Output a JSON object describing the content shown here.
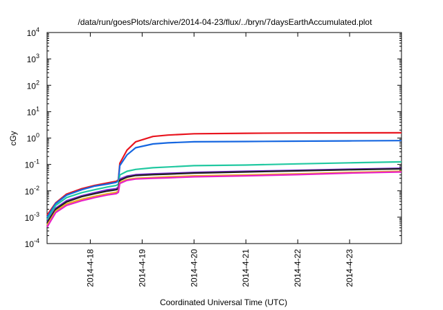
{
  "chart_data": {
    "type": "line",
    "title": "/data/run/goesPlots/archive/2014-04-23/flux/../bryn/7daysEarthAccumulated.plot",
    "xlabel": "Coordinated Universal Time (UTC)",
    "ylabel": "cGy",
    "yscale": "log",
    "ylim": [
      0.0001,
      10000
    ],
    "y_ticks": [
      {
        "base": "10",
        "exp": "-4",
        "value": 0.0001
      },
      {
        "base": "10",
        "exp": "-3",
        "value": 0.001
      },
      {
        "base": "10",
        "exp": "-2",
        "value": 0.01
      },
      {
        "base": "10",
        "exp": "-1",
        "value": 0.1
      },
      {
        "base": "10",
        "exp": "0",
        "value": 1
      },
      {
        "base": "10",
        "exp": "1",
        "value": 10
      },
      {
        "base": "10",
        "exp": "2",
        "value": 100
      },
      {
        "base": "10",
        "exp": "3",
        "value": 1000
      },
      {
        "base": "10",
        "exp": "4",
        "value": 10000
      }
    ],
    "xlim": [
      "2014-04-17T04:00",
      "2014-04-24T00:00"
    ],
    "x_ticks": [
      "2014-4-18",
      "2014-4-19",
      "2014-4-20",
      "2014-4-21",
      "2014-4-22",
      "2014-4-23"
    ],
    "x_tick_values": [
      "2014-04-18T00:00",
      "2014-04-19T00:00",
      "2014-04-20T00:00",
      "2014-04-21T00:00",
      "2014-04-22T00:00",
      "2014-04-23T00:00"
    ],
    "grid": false,
    "legend": "none",
    "series": [
      {
        "color": "#e8141e",
        "points": [
          [
            "2014-04-17T04:00",
            0.0012
          ],
          [
            "2014-04-17T08:00",
            0.0035
          ],
          [
            "2014-04-17T13:00",
            0.0075
          ],
          [
            "2014-04-17T20:00",
            0.012
          ],
          [
            "2014-04-18T02:00",
            0.016
          ],
          [
            "2014-04-18T08:00",
            0.02
          ],
          [
            "2014-04-18T12:00",
            0.023
          ],
          [
            "2014-04-18T13:00",
            0.026
          ],
          [
            "2014-04-18T13:40",
            0.11
          ],
          [
            "2014-04-18T17:00",
            0.35
          ],
          [
            "2014-04-18T21:00",
            0.72
          ],
          [
            "2014-04-19T05:00",
            1.15
          ],
          [
            "2014-04-19T12:00",
            1.3
          ],
          [
            "2014-04-20T00:00",
            1.45
          ],
          [
            "2014-04-21T00:00",
            1.52
          ],
          [
            "2014-04-22T00:00",
            1.55
          ],
          [
            "2014-04-23T00:00",
            1.57
          ],
          [
            "2014-04-24T00:00",
            1.58
          ]
        ]
      },
      {
        "color": "#1566e0",
        "points": [
          [
            "2014-04-17T04:00",
            0.001
          ],
          [
            "2014-04-17T08:00",
            0.0033
          ],
          [
            "2014-04-17T13:00",
            0.0068
          ],
          [
            "2014-04-17T20:00",
            0.011
          ],
          [
            "2014-04-18T02:00",
            0.015
          ],
          [
            "2014-04-18T08:00",
            0.018
          ],
          [
            "2014-04-18T12:00",
            0.021
          ],
          [
            "2014-04-18T13:00",
            0.024
          ],
          [
            "2014-04-18T13:40",
            0.09
          ],
          [
            "2014-04-18T17:00",
            0.23
          ],
          [
            "2014-04-18T21:00",
            0.43
          ],
          [
            "2014-04-19T05:00",
            0.6
          ],
          [
            "2014-04-19T12:00",
            0.66
          ],
          [
            "2014-04-20T00:00",
            0.72
          ],
          [
            "2014-04-21T00:00",
            0.74
          ],
          [
            "2014-04-22T00:00",
            0.76
          ],
          [
            "2014-04-23T00:00",
            0.78
          ],
          [
            "2014-04-24T00:00",
            0.8
          ]
        ]
      },
      {
        "color": "#20c8a0",
        "points": [
          [
            "2014-04-17T04:00",
            0.0008
          ],
          [
            "2014-04-17T08:00",
            0.0028
          ],
          [
            "2014-04-17T13:00",
            0.0055
          ],
          [
            "2014-04-17T20:00",
            0.0085
          ],
          [
            "2014-04-18T02:00",
            0.011
          ],
          [
            "2014-04-18T08:00",
            0.014
          ],
          [
            "2014-04-18T12:00",
            0.016
          ],
          [
            "2014-04-18T13:00",
            0.018
          ],
          [
            "2014-04-18T13:40",
            0.04
          ],
          [
            "2014-04-18T17:00",
            0.055
          ],
          [
            "2014-04-18T21:00",
            0.065
          ],
          [
            "2014-04-19T05:00",
            0.075
          ],
          [
            "2014-04-19T12:00",
            0.08
          ],
          [
            "2014-04-20T00:00",
            0.09
          ],
          [
            "2014-04-21T00:00",
            0.095
          ],
          [
            "2014-04-22T00:00",
            0.105
          ],
          [
            "2014-04-23T00:00",
            0.115
          ],
          [
            "2014-04-24T00:00",
            0.125
          ]
        ]
      },
      {
        "color": "#7a28d8",
        "points": [
          [
            "2014-04-17T04:00",
            0.00065
          ],
          [
            "2014-04-17T08:00",
            0.0022
          ],
          [
            "2014-04-17T13:00",
            0.0042
          ],
          [
            "2014-04-17T20:00",
            0.0065
          ],
          [
            "2014-04-18T02:00",
            0.0085
          ],
          [
            "2014-04-18T08:00",
            0.011
          ],
          [
            "2014-04-18T12:00",
            0.012
          ],
          [
            "2014-04-18T13:00",
            0.014
          ],
          [
            "2014-04-18T13:40",
            0.028
          ],
          [
            "2014-04-18T17:00",
            0.036
          ],
          [
            "2014-04-18T21:00",
            0.041
          ],
          [
            "2014-04-19T05:00",
            0.044
          ],
          [
            "2014-04-19T12:00",
            0.046
          ],
          [
            "2014-04-20T00:00",
            0.05
          ],
          [
            "2014-04-21T00:00",
            0.055
          ],
          [
            "2014-04-22T00:00",
            0.06
          ],
          [
            "2014-04-23T00:00",
            0.066
          ],
          [
            "2014-04-24T00:00",
            0.072
          ]
        ]
      },
      {
        "color": "#202020",
        "points": [
          [
            "2014-04-17T04:00",
            0.0006
          ],
          [
            "2014-04-17T08:00",
            0.002
          ],
          [
            "2014-04-17T13:00",
            0.0038
          ],
          [
            "2014-04-17T20:00",
            0.006
          ],
          [
            "2014-04-18T02:00",
            0.0078
          ],
          [
            "2014-04-18T08:00",
            0.0098
          ],
          [
            "2014-04-18T12:00",
            0.011
          ],
          [
            "2014-04-18T13:00",
            0.012
          ],
          [
            "2014-04-18T13:40",
            0.025
          ],
          [
            "2014-04-18T17:00",
            0.033
          ],
          [
            "2014-04-18T21:00",
            0.038
          ],
          [
            "2014-04-19T05:00",
            0.041
          ],
          [
            "2014-04-19T12:00",
            0.043
          ],
          [
            "2014-04-20T00:00",
            0.047
          ],
          [
            "2014-04-21T00:00",
            0.052
          ],
          [
            "2014-04-22T00:00",
            0.057
          ],
          [
            "2014-04-23T00:00",
            0.063
          ],
          [
            "2014-04-24T00:00",
            0.068
          ]
        ]
      },
      {
        "color": "#e8b020",
        "points": [
          [
            "2014-04-17T04:00",
            0.0005
          ],
          [
            "2014-04-17T08:00",
            0.0017
          ],
          [
            "2014-04-17T13:00",
            0.0032
          ],
          [
            "2014-04-17T20:00",
            0.0048
          ],
          [
            "2014-04-18T02:00",
            0.0062
          ],
          [
            "2014-04-18T08:00",
            0.0078
          ],
          [
            "2014-04-18T12:00",
            0.0088
          ],
          [
            "2014-04-18T13:00",
            0.0098
          ],
          [
            "2014-04-18T13:40",
            0.021
          ],
          [
            "2014-04-18T17:00",
            0.027
          ],
          [
            "2014-04-18T21:00",
            0.03
          ],
          [
            "2014-04-19T05:00",
            0.032
          ],
          [
            "2014-04-19T12:00",
            0.034
          ],
          [
            "2014-04-20T00:00",
            0.037
          ],
          [
            "2014-04-21T00:00",
            0.04
          ],
          [
            "2014-04-22T00:00",
            0.044
          ],
          [
            "2014-04-23T00:00",
            0.05
          ],
          [
            "2014-04-24T00:00",
            0.055
          ]
        ]
      },
      {
        "color": "#e820c8",
        "points": [
          [
            "2014-04-17T04:00",
            0.00042
          ],
          [
            "2014-04-17T08:00",
            0.0015
          ],
          [
            "2014-04-17T13:00",
            0.0028
          ],
          [
            "2014-04-17T20:00",
            0.0042
          ],
          [
            "2014-04-18T02:00",
            0.0055
          ],
          [
            "2014-04-18T08:00",
            0.007
          ],
          [
            "2014-04-18T12:00",
            0.0078
          ],
          [
            "2014-04-18T13:00",
            0.0088
          ],
          [
            "2014-04-18T13:40",
            0.019
          ],
          [
            "2014-04-18T17:00",
            0.025
          ],
          [
            "2014-04-18T21:00",
            0.028
          ],
          [
            "2014-04-19T05:00",
            0.03
          ],
          [
            "2014-04-19T12:00",
            0.031
          ],
          [
            "2014-04-20T00:00",
            0.034
          ],
          [
            "2014-04-21T00:00",
            0.037
          ],
          [
            "2014-04-22T00:00",
            0.041
          ],
          [
            "2014-04-23T00:00",
            0.047
          ],
          [
            "2014-04-24T00:00",
            0.052
          ]
        ]
      }
    ]
  }
}
